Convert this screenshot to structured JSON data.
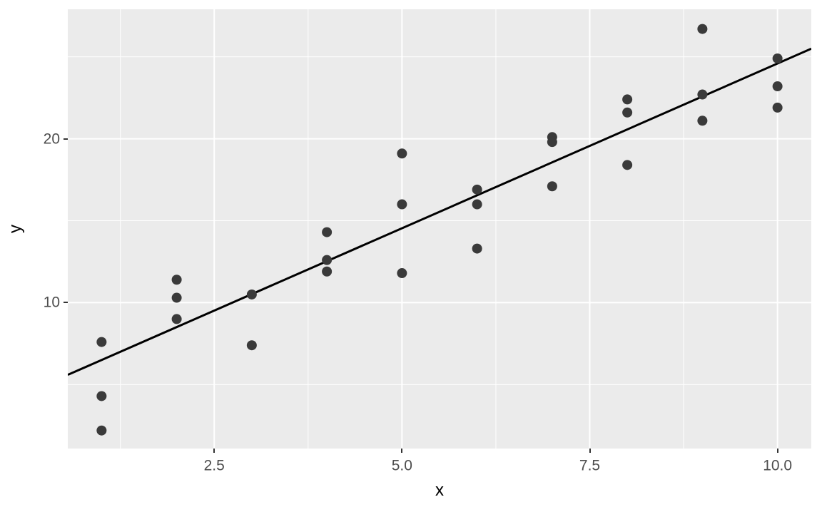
{
  "chart_data": {
    "type": "scatter",
    "xlabel": "x",
    "ylabel": "y",
    "xlim": [
      0.55,
      10.45
    ],
    "ylim": [
      1.1,
      27.9
    ],
    "grid": "on",
    "legend": "none",
    "x_axis": {
      "major_ticks": [
        2.5,
        5.0,
        7.5,
        10.0
      ],
      "major_labels": [
        "2.5",
        "5.0",
        "7.5",
        "10.0"
      ],
      "minor_ticks": [
        1.25,
        3.75,
        6.25,
        8.75
      ]
    },
    "y_axis": {
      "major_ticks": [
        10,
        20
      ],
      "major_labels": [
        "10",
        "20"
      ],
      "minor_ticks": [
        5,
        15,
        25
      ]
    },
    "points": [
      [
        1,
        7.6
      ],
      [
        1,
        4.3
      ],
      [
        1,
        2.2
      ],
      [
        2,
        11.4
      ],
      [
        2,
        10.3
      ],
      [
        2,
        9.0
      ],
      [
        3,
        10.5
      ],
      [
        3,
        7.4
      ],
      [
        4,
        14.3
      ],
      [
        4,
        12.6
      ],
      [
        4,
        11.9
      ],
      [
        5,
        19.1
      ],
      [
        5,
        16.0
      ],
      [
        5,
        11.8
      ],
      [
        6,
        16.9
      ],
      [
        6,
        16.0
      ],
      [
        6,
        13.3
      ],
      [
        7,
        20.1
      ],
      [
        7,
        19.8
      ],
      [
        7,
        17.1
      ],
      [
        8,
        22.4
      ],
      [
        8,
        21.6
      ],
      [
        8,
        18.4
      ],
      [
        9,
        26.7
      ],
      [
        9,
        22.7
      ],
      [
        9,
        21.1
      ],
      [
        10,
        24.9
      ],
      [
        10,
        23.2
      ],
      [
        10,
        21.9
      ]
    ],
    "regression_line": {
      "slope": 2.01,
      "intercept": 4.49
    }
  },
  "style": {
    "panel_bg": "#EBEBEB",
    "grid_color": "#FFFFFF",
    "point_color": "#3A3A3A",
    "line_color": "#000000",
    "tick_label_color": "#4D4D4D",
    "tick_mark_color": "#333333",
    "axis_title_color": "#000000"
  }
}
